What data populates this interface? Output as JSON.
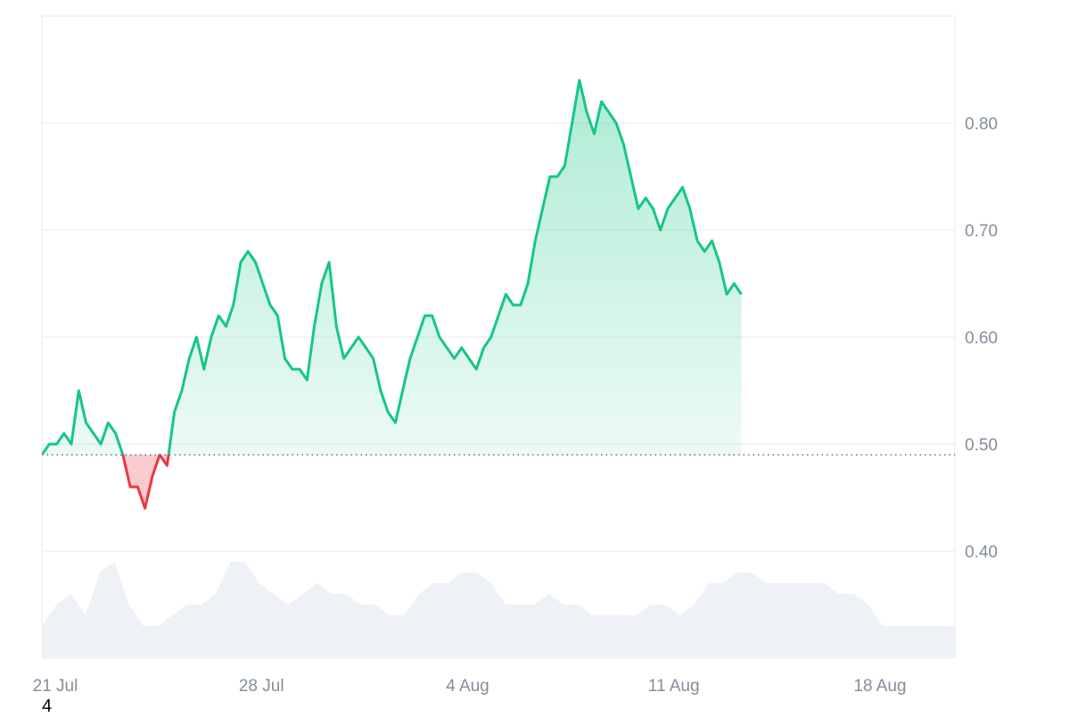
{
  "chart_data": {
    "type": "area",
    "baseline": 0.49,
    "ylim": [
      0.3,
      0.9
    ],
    "y_ticks": [
      {
        "value": 0.4,
        "label": "0.40"
      },
      {
        "value": 0.5,
        "label": "0.50"
      },
      {
        "value": 0.6,
        "label": "0.60"
      },
      {
        "value": 0.7,
        "label": "0.70"
      },
      {
        "value": 0.8,
        "label": "0.80"
      }
    ],
    "x_domain": [
      "2025-07-21",
      "2025-08-21"
    ],
    "x_ticks": [
      {
        "date": "2025-07-21",
        "label": "21 Jul"
      },
      {
        "date": "2025-07-28",
        "label": "28 Jul"
      },
      {
        "date": "2025-08-04",
        "label": "4 Aug"
      },
      {
        "date": "2025-08-11",
        "label": "11 Aug"
      },
      {
        "date": "2025-08-18",
        "label": "18 Aug"
      }
    ],
    "series": [
      {
        "values": [
          [
            "2025-07-21 00:00",
            0.49
          ],
          [
            "2025-07-21 06:00",
            0.5
          ],
          [
            "2025-07-21 12:00",
            0.5
          ],
          [
            "2025-07-21 18:00",
            0.51
          ],
          [
            "2025-07-22 00:00",
            0.5
          ],
          [
            "2025-07-22 06:00",
            0.55
          ],
          [
            "2025-07-22 12:00",
            0.52
          ],
          [
            "2025-07-22 18:00",
            0.51
          ],
          [
            "2025-07-23 00:00",
            0.5
          ],
          [
            "2025-07-23 06:00",
            0.52
          ],
          [
            "2025-07-23 12:00",
            0.51
          ],
          [
            "2025-07-23 18:00",
            0.49
          ],
          [
            "2025-07-24 00:00",
            0.46
          ],
          [
            "2025-07-24 06:00",
            0.46
          ],
          [
            "2025-07-24 12:00",
            0.44
          ],
          [
            "2025-07-24 18:00",
            0.47
          ],
          [
            "2025-07-25 00:00",
            0.49
          ],
          [
            "2025-07-25 06:00",
            0.48
          ],
          [
            "2025-07-25 12:00",
            0.53
          ],
          [
            "2025-07-25 18:00",
            0.55
          ],
          [
            "2025-07-26 00:00",
            0.58
          ],
          [
            "2025-07-26 06:00",
            0.6
          ],
          [
            "2025-07-26 12:00",
            0.57
          ],
          [
            "2025-07-26 18:00",
            0.6
          ],
          [
            "2025-07-27 00:00",
            0.62
          ],
          [
            "2025-07-27 06:00",
            0.61
          ],
          [
            "2025-07-27 12:00",
            0.63
          ],
          [
            "2025-07-27 18:00",
            0.67
          ],
          [
            "2025-07-28 00:00",
            0.68
          ],
          [
            "2025-07-28 06:00",
            0.67
          ],
          [
            "2025-07-28 12:00",
            0.65
          ],
          [
            "2025-07-28 18:00",
            0.63
          ],
          [
            "2025-07-29 00:00",
            0.62
          ],
          [
            "2025-07-29 06:00",
            0.58
          ],
          [
            "2025-07-29 12:00",
            0.57
          ],
          [
            "2025-07-29 18:00",
            0.57
          ],
          [
            "2025-07-30 00:00",
            0.56
          ],
          [
            "2025-07-30 06:00",
            0.61
          ],
          [
            "2025-07-30 12:00",
            0.65
          ],
          [
            "2025-07-30 18:00",
            0.67
          ],
          [
            "2025-07-31 00:00",
            0.61
          ],
          [
            "2025-07-31 06:00",
            0.58
          ],
          [
            "2025-07-31 12:00",
            0.59
          ],
          [
            "2025-07-31 18:00",
            0.6
          ],
          [
            "2025-08-01 00:00",
            0.59
          ],
          [
            "2025-08-01 06:00",
            0.58
          ],
          [
            "2025-08-01 12:00",
            0.55
          ],
          [
            "2025-08-01 18:00",
            0.53
          ],
          [
            "2025-08-02 00:00",
            0.52
          ],
          [
            "2025-08-02 06:00",
            0.55
          ],
          [
            "2025-08-02 12:00",
            0.58
          ],
          [
            "2025-08-02 18:00",
            0.6
          ],
          [
            "2025-08-03 00:00",
            0.62
          ],
          [
            "2025-08-03 06:00",
            0.62
          ],
          [
            "2025-08-03 12:00",
            0.6
          ],
          [
            "2025-08-03 18:00",
            0.59
          ],
          [
            "2025-08-04 00:00",
            0.58
          ],
          [
            "2025-08-04 06:00",
            0.59
          ],
          [
            "2025-08-04 12:00",
            0.58
          ],
          [
            "2025-08-04 18:00",
            0.57
          ],
          [
            "2025-08-05 00:00",
            0.59
          ],
          [
            "2025-08-05 06:00",
            0.6
          ],
          [
            "2025-08-05 12:00",
            0.62
          ],
          [
            "2025-08-05 18:00",
            0.64
          ],
          [
            "2025-08-06 00:00",
            0.63
          ],
          [
            "2025-08-06 06:00",
            0.63
          ],
          [
            "2025-08-06 12:00",
            0.65
          ],
          [
            "2025-08-06 18:00",
            0.69
          ],
          [
            "2025-08-07 00:00",
            0.72
          ],
          [
            "2025-08-07 06:00",
            0.75
          ],
          [
            "2025-08-07 12:00",
            0.75
          ],
          [
            "2025-08-07 18:00",
            0.76
          ],
          [
            "2025-08-08 00:00",
            0.8
          ],
          [
            "2025-08-08 06:00",
            0.84
          ],
          [
            "2025-08-08 12:00",
            0.81
          ],
          [
            "2025-08-08 18:00",
            0.79
          ],
          [
            "2025-08-09 00:00",
            0.82
          ],
          [
            "2025-08-09 06:00",
            0.81
          ],
          [
            "2025-08-09 12:00",
            0.8
          ],
          [
            "2025-08-09 18:00",
            0.78
          ],
          [
            "2025-08-10 00:00",
            0.75
          ],
          [
            "2025-08-10 06:00",
            0.72
          ],
          [
            "2025-08-10 12:00",
            0.73
          ],
          [
            "2025-08-10 18:00",
            0.72
          ],
          [
            "2025-08-11 00:00",
            0.7
          ],
          [
            "2025-08-11 06:00",
            0.72
          ],
          [
            "2025-08-11 12:00",
            0.73
          ],
          [
            "2025-08-11 18:00",
            0.74
          ],
          [
            "2025-08-12 00:00",
            0.72
          ],
          [
            "2025-08-12 06:00",
            0.69
          ],
          [
            "2025-08-12 12:00",
            0.68
          ],
          [
            "2025-08-12 18:00",
            0.69
          ],
          [
            "2025-08-13 00:00",
            0.67
          ],
          [
            "2025-08-13 06:00",
            0.64
          ],
          [
            "2025-08-13 12:00",
            0.65
          ],
          [
            "2025-08-13 18:00",
            0.64
          ]
        ]
      }
    ],
    "volume": [
      0.33,
      0.35,
      0.36,
      0.34,
      0.38,
      0.39,
      0.35,
      0.33,
      0.33,
      0.34,
      0.35,
      0.35,
      0.36,
      0.39,
      0.39,
      0.37,
      0.36,
      0.35,
      0.36,
      0.37,
      0.36,
      0.36,
      0.35,
      0.35,
      0.34,
      0.34,
      0.36,
      0.37,
      0.37,
      0.38,
      0.38,
      0.37,
      0.35,
      0.35,
      0.35,
      0.36,
      0.35,
      0.35,
      0.34,
      0.34,
      0.34,
      0.34,
      0.35,
      0.35,
      0.34,
      0.35,
      0.37,
      0.37,
      0.38,
      0.38,
      0.37,
      0.37,
      0.37,
      0.37,
      0.37,
      0.36,
      0.36,
      0.35,
      0.33,
      0.33,
      0.33,
      0.33,
      0.33,
      0.33
    ],
    "colors": {
      "up_line": "#16c784",
      "down_line": "#ea3943",
      "up_fill": "#16c784",
      "down_fill": "#ea3943",
      "volume_fill": "#eef1f5",
      "grid": "#e8eaed",
      "baseline": "#4b5563",
      "tick_text": "#848e9c"
    }
  },
  "footer": {
    "corner_label": "4"
  }
}
